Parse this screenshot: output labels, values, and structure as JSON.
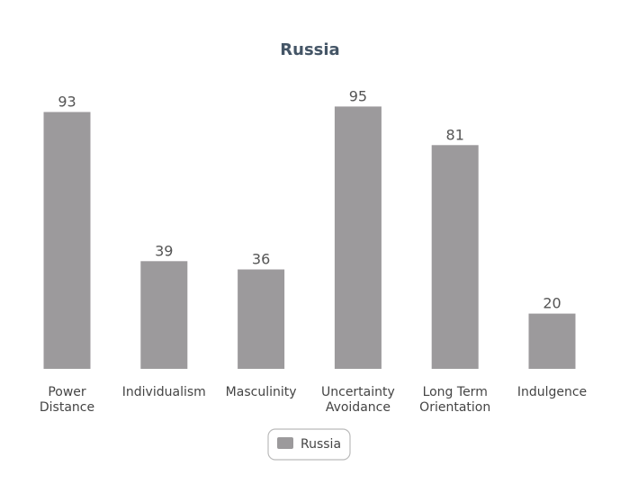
{
  "chart_data": {
    "type": "bar",
    "title": "Russia",
    "categories": [
      [
        "Power",
        "Distance"
      ],
      [
        "Individualism"
      ],
      [
        "Masculinity"
      ],
      [
        "Uncertainty",
        "Avoidance"
      ],
      [
        "Long Term",
        "Orientation"
      ],
      [
        "Indulgence"
      ]
    ],
    "series": [
      {
        "name": "Russia",
        "values": [
          93,
          39,
          36,
          95,
          81,
          20
        ],
        "color": "#9c9a9c"
      }
    ],
    "ylim": [
      0,
      100
    ],
    "grid": false,
    "legend": "bottom-center",
    "xlabel": "",
    "ylabel": ""
  }
}
